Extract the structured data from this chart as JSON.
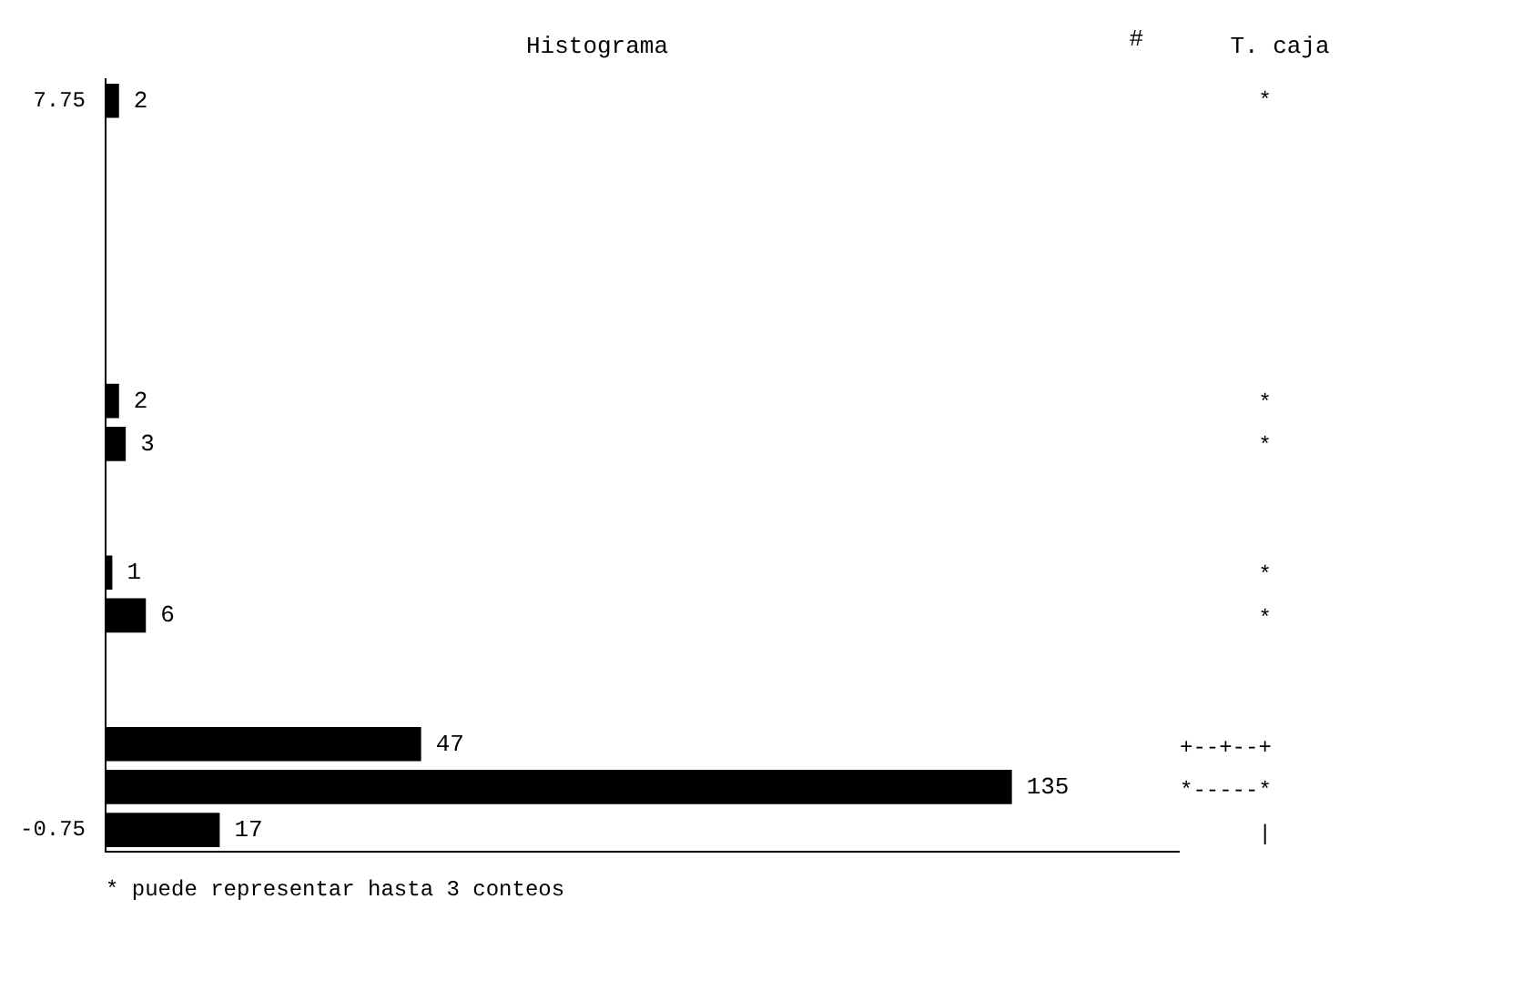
{
  "chart_data": [
    {
      "type": "bar",
      "title": "Histograma",
      "orientation": "horizontal",
      "categories": [
        "7.75",
        null,
        null,
        null,
        null,
        null,
        null,
        null,
        null,
        null,
        null,
        null,
        null,
        null,
        null,
        null,
        null,
        "-0.75"
      ],
      "values": [
        2,
        0,
        0,
        0,
        0,
        0,
        0,
        2,
        3,
        0,
        0,
        1,
        6,
        0,
        0,
        47,
        135,
        17
      ],
      "value_labels": [
        "2",
        null,
        null,
        null,
        null,
        null,
        null,
        "2",
        "3",
        null,
        null,
        "1",
        "6",
        null,
        null,
        "47",
        "135",
        "17"
      ],
      "tick_labels": "y",
      "color": "#000000",
      "annotations": [
        "#",
        "* puede representar hasta 3 conteos"
      ]
    },
    {
      "type": "other",
      "title": "T. caja",
      "categories": [
        "*",
        null,
        null,
        null,
        null,
        null,
        null,
        "*",
        "*",
        null,
        null,
        "*",
        "*",
        null,
        null,
        "+--+--+",
        "*-----*",
        "|"
      ]
    }
  ]
}
